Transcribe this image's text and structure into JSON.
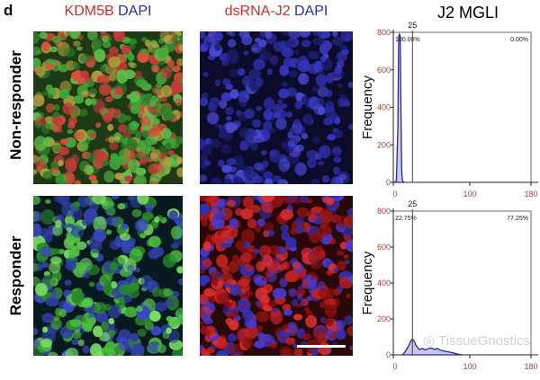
{
  "panel_letter": "d",
  "column_headers": [
    {
      "parts": [
        {
          "text": "KDM5B",
          "color": "#d42a2a"
        },
        {
          "text": " DAPI",
          "color": "#2a2ab0"
        }
      ]
    },
    {
      "parts": [
        {
          "text": "dsRNA-J2",
          "color": "#d42a2a"
        },
        {
          "text": " DAPI",
          "color": "#2a2ab0"
        }
      ]
    },
    {
      "parts": [
        {
          "text": "J2 MGLI",
          "color": "#111111"
        }
      ]
    }
  ],
  "row_labels": [
    "Non-responder",
    "Responder"
  ],
  "watermark": "TissueGnostics",
  "chart_data": [
    {
      "type": "area",
      "row": "Non-responder",
      "ylabel": "Frequency",
      "xlim": [
        0,
        180
      ],
      "ylim": [
        0,
        800
      ],
      "xticks": [
        "0",
        "100",
        "180"
      ],
      "yticks": [
        "0",
        "200",
        "400",
        "600",
        "800"
      ],
      "threshold": {
        "value": 25,
        "label": "25"
      },
      "gate_labels": {
        "left": "100.00%",
        "right": "0.00%"
      },
      "x": [
        2,
        4,
        6,
        7,
        8,
        9,
        10,
        11,
        12,
        14
      ],
      "y": [
        0,
        10,
        300,
        780,
        790,
        780,
        400,
        60,
        10,
        0
      ],
      "color": "#2a2a8a"
    },
    {
      "type": "area",
      "row": "Responder",
      "ylabel": "Frequency",
      "xlim": [
        0,
        180
      ],
      "ylim": [
        0,
        800
      ],
      "xticks": [
        "0",
        "100",
        "180"
      ],
      "yticks": [
        "0",
        "200",
        "400",
        "600",
        "800"
      ],
      "threshold": {
        "value": 25,
        "label": "25"
      },
      "gate_labels": {
        "left": "22.75%",
        "right": "77.25%"
      },
      "x": [
        12,
        16,
        20,
        24,
        27,
        30,
        34,
        38,
        42,
        46,
        50,
        54,
        58,
        62,
        66,
        70,
        74,
        78,
        82,
        86,
        90
      ],
      "y": [
        0,
        20,
        50,
        85,
        80,
        50,
        30,
        35,
        28,
        35,
        38,
        30,
        35,
        25,
        22,
        18,
        15,
        12,
        6,
        3,
        0
      ],
      "color": "#2a2a8a"
    }
  ]
}
